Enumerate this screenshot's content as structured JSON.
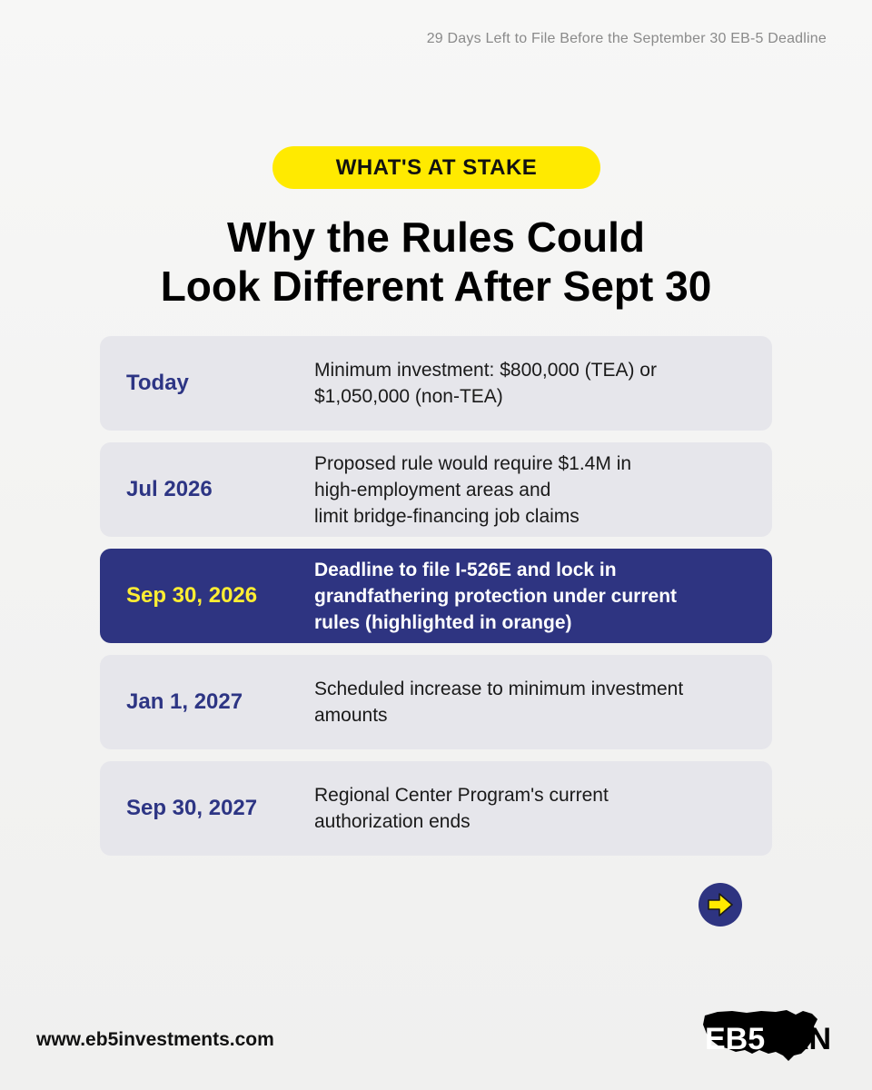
{
  "header": {
    "top_note": "29 Days Left to File Before the September 30 EB-5 Deadline"
  },
  "badge": {
    "label": "WHAT'S AT STAKE"
  },
  "headline": {
    "line1": "Why the Rules Could",
    "line2": "Look Different After Sept 30"
  },
  "timeline": [
    {
      "date": "Today",
      "lines": [
        "Minimum investment: $800,000 (TEA) or",
        "$1,050,000 (non-TEA)"
      ],
      "highlighted": false
    },
    {
      "date": "Jul 2026",
      "lines": [
        "Proposed rule would require $1.4M in",
        "high-employment areas and",
        "limit bridge-financing job claims"
      ],
      "highlighted": false
    },
    {
      "date": "Sep 30, 2026",
      "lines": [
        "Deadline to file I-526E and lock in",
        "grandfathering protection under current",
        "rules (highlighted in orange)"
      ],
      "highlighted": true
    },
    {
      "date": "Jan 1, 2027",
      "lines": [
        "Scheduled increase to minimum investment",
        "amounts"
      ],
      "highlighted": false
    },
    {
      "date": "Sep 30, 2027",
      "lines": [
        "Regional Center Program's current",
        "authorization ends"
      ],
      "highlighted": false
    }
  ],
  "navigation": {
    "next_icon": "arrow-right-icon"
  },
  "footer": {
    "url": "www.eb5investments.com",
    "logo_text": "EB5AN"
  },
  "colors": {
    "accent_yellow": "#ffea00",
    "navy": "#2e3481",
    "date_blue": "#2d3584",
    "row_gray": "#e6e6eb",
    "highlight_date": "#ffee33"
  }
}
